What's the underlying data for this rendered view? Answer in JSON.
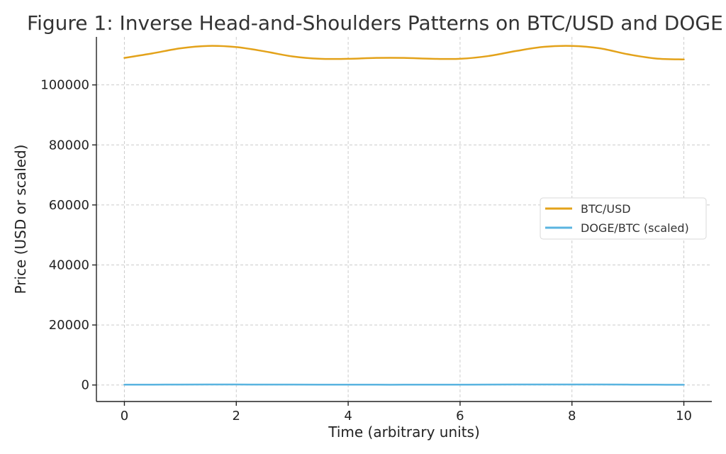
{
  "chart_data": {
    "type": "line",
    "title": "Figure 1: Inverse Head-and-Shoulders Patterns on BTC/USD and DOGE",
    "xlabel": "Time (arbitrary units)",
    "ylabel": "Price (USD or scaled)",
    "xlim": [
      -0.5,
      10.5
    ],
    "ylim": [
      -5500,
      116000
    ],
    "xticks": [
      0,
      2,
      4,
      6,
      8,
      10
    ],
    "yticks": [
      0,
      20000,
      40000,
      60000,
      80000,
      100000
    ],
    "grid": true,
    "legend_position": "center-right",
    "series": [
      {
        "name": "BTC/USD",
        "color": "#e3a21a",
        "x": [
          0,
          0.5,
          1,
          1.5,
          2,
          2.5,
          3,
          3.5,
          4,
          4.5,
          5,
          5.5,
          6,
          6.5,
          7,
          7.5,
          8,
          8.5,
          9,
          9.5,
          10
        ],
        "y": [
          109000,
          110500,
          112200,
          113000,
          112600,
          111200,
          109500,
          108700,
          108700,
          109000,
          109000,
          108700,
          108700,
          109600,
          111300,
          112700,
          113000,
          112200,
          110200,
          108800,
          108500
        ]
      },
      {
        "name": "DOGE/BTC (scaled)",
        "color": "#5ab4e0",
        "x": [
          0,
          0.5,
          1,
          1.5,
          2,
          2.5,
          3,
          3.5,
          4,
          4.5,
          5,
          5.5,
          6,
          6.5,
          7,
          7.5,
          8,
          8.5,
          9,
          9.5,
          10
        ],
        "y": [
          100,
          120,
          150,
          160,
          160,
          150,
          130,
          110,
          100,
          100,
          100,
          110,
          120,
          140,
          160,
          180,
          180,
          160,
          130,
          100,
          80
        ]
      }
    ]
  }
}
